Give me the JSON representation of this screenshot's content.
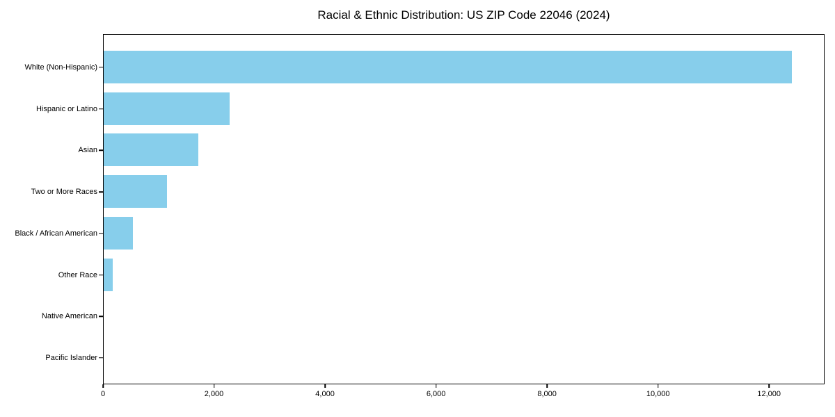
{
  "figure": {
    "title": "Racial & Ethnic Distribution: US ZIP Code 22046 (2024)"
  },
  "chart_data": {
    "type": "bar",
    "orientation": "horizontal",
    "title": "Racial & Ethnic Distribution: US ZIP Code 22046 (2024)",
    "xlabel": "",
    "ylabel": "",
    "categories": [
      "White (Non-Hispanic)",
      "Hispanic or Latino",
      "Asian",
      "Two or More Races",
      "Black / African American",
      "Other Race",
      "Native American",
      "Pacific Islander"
    ],
    "values": [
      12400,
      2270,
      1700,
      1140,
      530,
      160,
      0,
      0
    ],
    "xlim": [
      0,
      13000
    ],
    "xticks": [
      0,
      2000,
      4000,
      6000,
      8000,
      10000,
      12000
    ],
    "xtick_labels": [
      "0",
      "2,000",
      "4,000",
      "6,000",
      "8,000",
      "10,000",
      "12,000"
    ],
    "bar_color": "#87CEEB",
    "spine_color": "#000000",
    "text_color": "#000000",
    "grid": false,
    "legend": null
  }
}
